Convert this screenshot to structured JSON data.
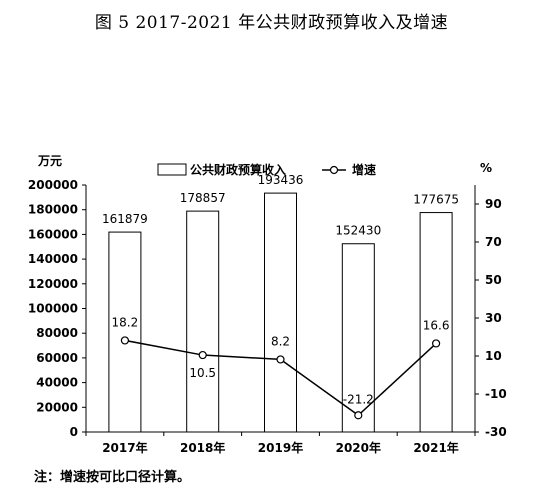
{
  "title": "图 5   2017-2021 年公共财政预算收入及增速",
  "note": "注：增速按可比口径计算。",
  "chart_data": {
    "type": "bar",
    "categories": [
      "2017年",
      "2018年",
      "2019年",
      "2020年",
      "2021年"
    ],
    "y_left_unit": "万元",
    "y_right_unit": "%",
    "ylim_left": [
      0,
      200000
    ],
    "ylim_right": [
      -30,
      100
    ],
    "y_left_ticks": [
      0,
      20000,
      40000,
      60000,
      80000,
      100000,
      120000,
      140000,
      160000,
      180000,
      200000
    ],
    "y_right_ticks": [
      -30,
      -10,
      10,
      30,
      50,
      70,
      90
    ],
    "grid": false,
    "legend_position": "top",
    "series": [
      {
        "name": "公共财政预算收入",
        "type": "bar",
        "axis": "left",
        "values": [
          161879,
          178857,
          193436,
          152430,
          177675
        ],
        "labels": [
          "161879",
          "178857",
          "193436",
          "152430",
          "177675"
        ]
      },
      {
        "name": "增速",
        "type": "line",
        "axis": "right",
        "values": [
          18.2,
          10.5,
          8.2,
          -21.2,
          16.6
        ],
        "labels": [
          "18.2",
          "10.5",
          "8.2",
          "-21.2",
          "16.6"
        ]
      }
    ]
  }
}
